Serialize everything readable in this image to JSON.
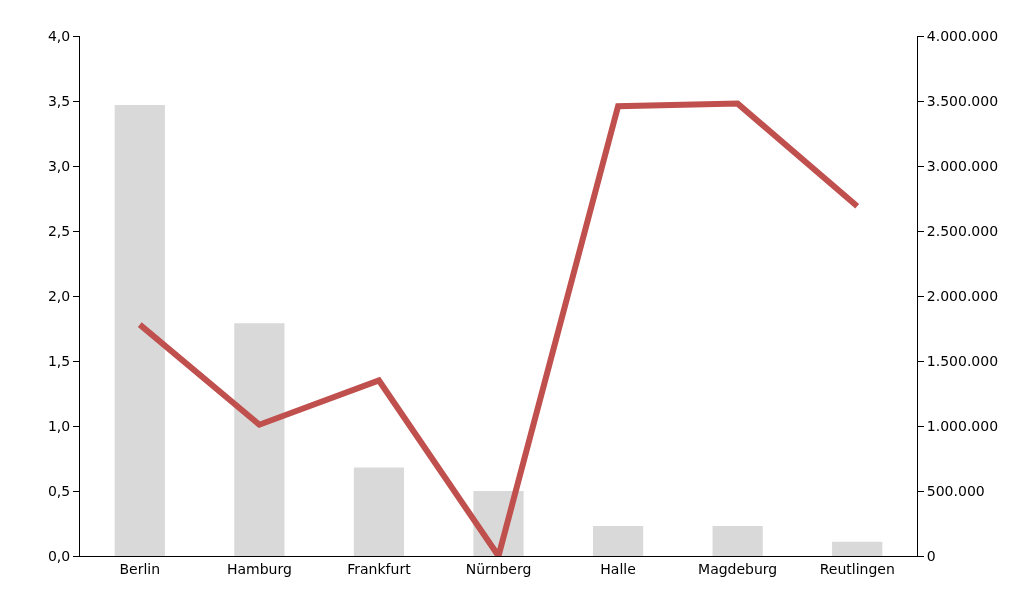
{
  "chart_data": {
    "type": "bar",
    "categories": [
      "Berlin",
      "Hamburg",
      "Frankfurt",
      "Nürnberg",
      "Halle",
      "Magdeburg",
      "Reutlingen"
    ],
    "series": [
      {
        "axis": "y2",
        "color": "#d9d9d9",
        "values": [
          3470000,
          1790000,
          680000,
          500000,
          230000,
          230000,
          110000
        ]
      },
      {
        "type": "line",
        "axis": "y",
        "color": "#c0504d",
        "values": [
          1.78,
          1.01,
          1.35,
          0,
          3.46,
          3.48,
          2.69
        ]
      }
    ],
    "ylim": [
      0,
      4
    ],
    "yticks": [
      {
        "value": 0,
        "label": "0,0"
      },
      {
        "value": 0.5,
        "label": "0,5"
      },
      {
        "value": 1,
        "label": "1,0"
      },
      {
        "value": 1.5,
        "label": "1,5"
      },
      {
        "value": 2,
        "label": "2,0"
      },
      {
        "value": 2.5,
        "label": "2,5"
      },
      {
        "value": 3,
        "label": "3,0"
      },
      {
        "value": 3.5,
        "label": "3,5"
      },
      {
        "value": 4,
        "label": "4,0"
      }
    ],
    "y2lim": [
      0,
      4000000
    ],
    "y2ticks": [
      0,
      {
        "value": 500000,
        "label": "500.000"
      },
      {
        "value": 1000000,
        "label": "1.000.000"
      },
      {
        "value": 1500000,
        "label": "1.500.000"
      },
      {
        "value": 2000000,
        "label": "2.000.000"
      },
      {
        "value": 2500000,
        "label": "2.500.000"
      },
      {
        "value": 3000000,
        "label": "3.000.000"
      },
      {
        "value": 3500000,
        "label": "3.500.000"
      },
      {
        "value": 4000000,
        "label": "4.000.000"
      }
    ],
    "marker": "none",
    "line_style": "solid"
  }
}
